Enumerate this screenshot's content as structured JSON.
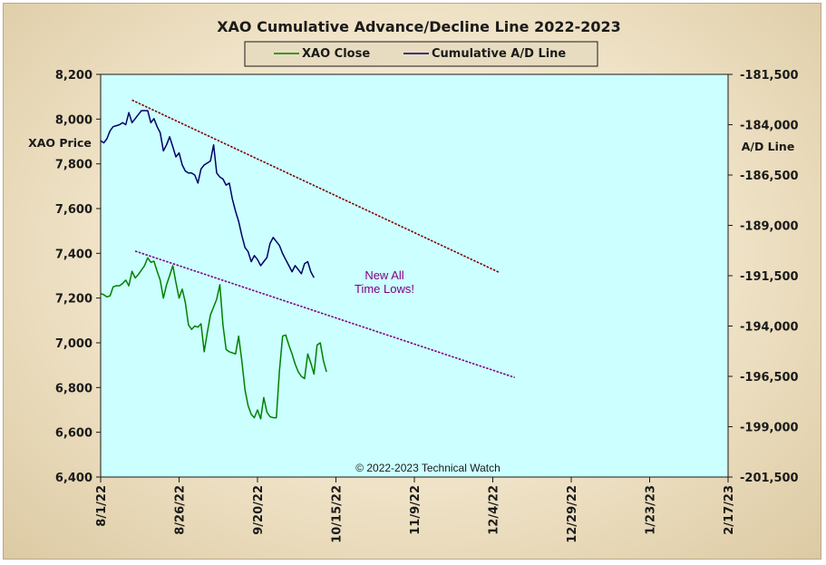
{
  "chart_data": {
    "type": "line",
    "title": "XAO Cumulative Advance/Decline Line 2022-2023",
    "ylabel_left": "XAO Price",
    "ylabel_right": "A/D Line",
    "legend_placement": "top-center",
    "grid": false,
    "x_ticks": [
      "8/1/22",
      "8/26/22",
      "9/20/22",
      "10/15/22",
      "11/9/22",
      "12/4/22",
      "12/29/22",
      "1/23/23",
      "2/17/23"
    ],
    "y_left_ticks": [
      "8,200",
      "8,000",
      "7,800",
      "7,600",
      "7,400",
      "7,200",
      "7,000",
      "6,800",
      "6,600",
      "6,400"
    ],
    "y_right_ticks": [
      "-181,500",
      "-184,000",
      "-186,500",
      "-189,000",
      "-191,500",
      "-194,000",
      "-196,500",
      "-199,000",
      "-201,500"
    ],
    "ylim_left": [
      6400,
      8200
    ],
    "ylim_right": [
      -201500,
      -181500
    ],
    "xlim_days": [
      0,
      200
    ],
    "annotation": [
      "New All",
      "Time Lows!"
    ],
    "copyright": "© 2022-2023  Technical Watch",
    "colors": {
      "plot_bg": "#ccffff",
      "xao_close": "#008000",
      "ad_line": "#000066",
      "trendline_upper": "#800000",
      "trendline_lower": "#800080",
      "annotation": "#800080"
    },
    "series": [
      {
        "name": "XAO Close",
        "axis": "left",
        "color": "#008000",
        "points": [
          [
            0,
            7220
          ],
          [
            1,
            7215
          ],
          [
            2,
            7205
          ],
          [
            3,
            7210
          ],
          [
            4,
            7250
          ],
          [
            5,
            7255
          ],
          [
            6,
            7255
          ],
          [
            7,
            7265
          ],
          [
            8,
            7280
          ],
          [
            9,
            7255
          ],
          [
            10,
            7320
          ],
          [
            11,
            7290
          ],
          [
            12,
            7305
          ],
          [
            13,
            7325
          ],
          [
            14,
            7345
          ],
          [
            15,
            7380
          ],
          [
            16,
            7360
          ],
          [
            17,
            7365
          ],
          [
            18,
            7320
          ],
          [
            19,
            7280
          ],
          [
            20,
            7200
          ],
          [
            21,
            7260
          ],
          [
            22,
            7300
          ],
          [
            23,
            7345
          ],
          [
            24,
            7270
          ],
          [
            25,
            7200
          ],
          [
            26,
            7240
          ],
          [
            27,
            7180
          ],
          [
            28,
            7080
          ],
          [
            29,
            7060
          ],
          [
            30,
            7075
          ],
          [
            31,
            7070
          ],
          [
            32,
            7085
          ],
          [
            33,
            6960
          ],
          [
            34,
            7045
          ],
          [
            35,
            7125
          ],
          [
            36,
            7160
          ],
          [
            37,
            7195
          ],
          [
            38,
            7260
          ],
          [
            39,
            7080
          ],
          [
            40,
            6970
          ],
          [
            41,
            6960
          ],
          [
            42,
            6955
          ],
          [
            43,
            6950
          ],
          [
            44,
            7030
          ],
          [
            45,
            6920
          ],
          [
            46,
            6790
          ],
          [
            47,
            6720
          ],
          [
            48,
            6680
          ],
          [
            49,
            6665
          ],
          [
            50,
            6700
          ],
          [
            51,
            6660
          ],
          [
            52,
            6755
          ],
          [
            53,
            6690
          ],
          [
            54,
            6670
          ],
          [
            55,
            6665
          ],
          [
            56,
            6665
          ],
          [
            57,
            6875
          ],
          [
            58,
            7030
          ],
          [
            59,
            7035
          ],
          [
            60,
            6990
          ],
          [
            61,
            6950
          ],
          [
            62,
            6905
          ],
          [
            63,
            6870
          ],
          [
            64,
            6850
          ],
          [
            65,
            6840
          ],
          [
            66,
            6950
          ],
          [
            67,
            6910
          ],
          [
            68,
            6860
          ],
          [
            69,
            6990
          ],
          [
            70,
            7000
          ],
          [
            71,
            6920
          ],
          [
            72,
            6870
          ]
        ]
      },
      {
        "name": "Cumulative A/D Line",
        "axis": "right",
        "color": "#000066",
        "points": [
          [
            0,
            -184800
          ],
          [
            1,
            -184900
          ],
          [
            2,
            -184700
          ],
          [
            3,
            -184300
          ],
          [
            4,
            -184100
          ],
          [
            5,
            -184050
          ],
          [
            6,
            -184000
          ],
          [
            7,
            -183900
          ],
          [
            8,
            -184000
          ],
          [
            9,
            -183400
          ],
          [
            10,
            -183900
          ],
          [
            11,
            -183700
          ],
          [
            12,
            -183500
          ],
          [
            13,
            -183300
          ],
          [
            14,
            -183300
          ],
          [
            15,
            -183300
          ],
          [
            16,
            -183900
          ],
          [
            17,
            -183700
          ],
          [
            18,
            -184100
          ],
          [
            19,
            -184400
          ],
          [
            20,
            -185300
          ],
          [
            21,
            -185000
          ],
          [
            22,
            -184600
          ],
          [
            23,
            -185100
          ],
          [
            24,
            -185600
          ],
          [
            25,
            -185400
          ],
          [
            26,
            -186000
          ],
          [
            27,
            -186300
          ],
          [
            28,
            -186400
          ],
          [
            29,
            -186400
          ],
          [
            30,
            -186500
          ],
          [
            31,
            -186900
          ],
          [
            32,
            -186200
          ],
          [
            33,
            -186000
          ],
          [
            34,
            -185900
          ],
          [
            35,
            -185800
          ],
          [
            36,
            -185000
          ],
          [
            37,
            -186400
          ],
          [
            38,
            -186600
          ],
          [
            39,
            -186700
          ],
          [
            40,
            -187000
          ],
          [
            41,
            -186900
          ],
          [
            42,
            -187700
          ],
          [
            43,
            -188300
          ],
          [
            44,
            -188800
          ],
          [
            45,
            -189500
          ],
          [
            46,
            -190100
          ],
          [
            47,
            -190300
          ],
          [
            48,
            -190800
          ],
          [
            49,
            -190500
          ],
          [
            50,
            -190700
          ],
          [
            51,
            -191000
          ],
          [
            52,
            -190800
          ],
          [
            53,
            -190600
          ],
          [
            54,
            -189900
          ],
          [
            55,
            -189600
          ],
          [
            56,
            -189800
          ],
          [
            57,
            -190000
          ],
          [
            58,
            -190400
          ],
          [
            59,
            -190700
          ],
          [
            60,
            -191000
          ],
          [
            61,
            -191300
          ],
          [
            62,
            -191000
          ],
          [
            63,
            -191200
          ],
          [
            64,
            -191400
          ],
          [
            65,
            -190900
          ],
          [
            66,
            -190800
          ],
          [
            67,
            -191300
          ],
          [
            68,
            -191600
          ]
        ]
      }
    ],
    "trendlines": [
      {
        "axis": "left",
        "color": "#800000",
        "from": [
          10,
          8085
        ],
        "to": [
          127,
          7315
        ]
      },
      {
        "axis": "left",
        "color": "#800080",
        "from": [
          11,
          7410
        ],
        "to": [
          132,
          6845
        ]
      }
    ]
  },
  "legend": {
    "items": [
      "XAO Close",
      "Cumulative A/D Line"
    ]
  }
}
